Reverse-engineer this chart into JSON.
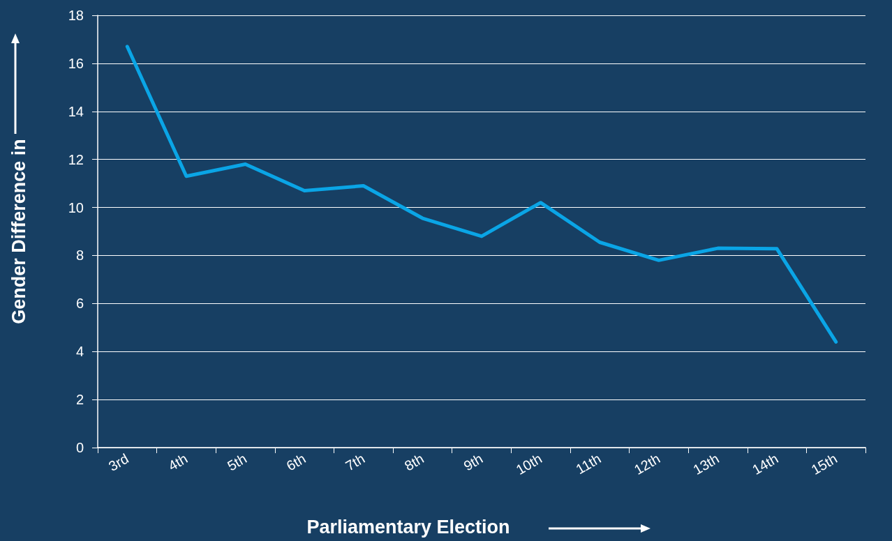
{
  "chart_data": {
    "type": "line",
    "xlabel": "Parliamentary Election",
    "ylabel": "Gender Difference in",
    "categories": [
      "3rd",
      "4th",
      "5th",
      "6th",
      "7th",
      "8th",
      "9th",
      "10th",
      "11th",
      "12th",
      "13th",
      "14th",
      "15th"
    ],
    "series": [
      {
        "color": "#0aa5e6",
        "values": [
          16.7,
          11.3,
          11.8,
          10.7,
          10.9,
          9.55,
          8.8,
          10.2,
          8.55,
          7.8,
          8.3,
          8.28,
          4.4
        ]
      }
    ],
    "ylim": [
      0,
      18
    ],
    "yticks": [
      0,
      2,
      4,
      6,
      8,
      10,
      12,
      14,
      16,
      18
    ],
    "grid": "y",
    "marker": "none",
    "line_style": "solid"
  }
}
